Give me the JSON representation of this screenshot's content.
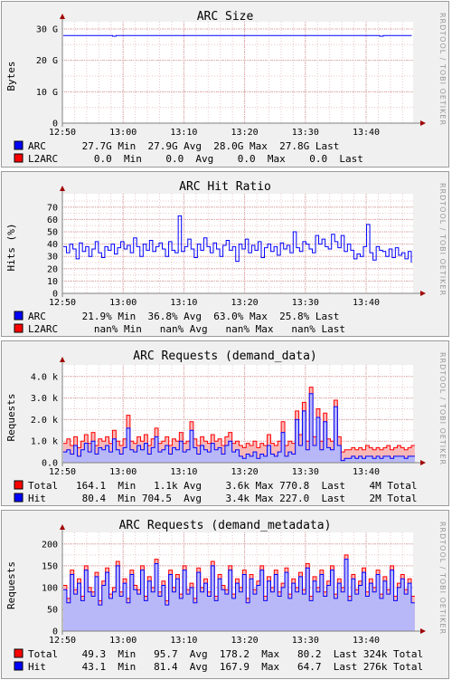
{
  "watermark": "RRDTOOL / TOBI OETIKER",
  "colors": {
    "blue": "#0000ff",
    "red": "#ff0000",
    "fill_blue": "#b8b8f8",
    "fill_red": "#f8b8b8",
    "grid": "#d9a0a0",
    "axis": "#808080"
  },
  "chart_data": [
    {
      "type": "line",
      "title": "ARC Size",
      "ylabel": "Bytes",
      "ylim": [
        0,
        30
      ],
      "yticks": [
        0,
        10,
        20,
        30
      ],
      "ytick_labels": [
        "0",
        "10 G",
        "20 G",
        "30 G"
      ],
      "xticks": [
        "12:50",
        "13:00",
        "13:10",
        "13:20",
        "13:30",
        "13:40"
      ],
      "series": [
        {
          "name": "ARC",
          "color": "#0000ff",
          "style": "line",
          "values": [
            27.9,
            27.9,
            27.9,
            27.9,
            27.9,
            27.9,
            27.9,
            27.9,
            27.9,
            27.9,
            27.9,
            27.9,
            27.9,
            27.9,
            27.7,
            27.9,
            27.9,
            27.9,
            27.9,
            27.9,
            27.9,
            27.9,
            27.9,
            27.9,
            27.9,
            27.9,
            27.9,
            27.9,
            27.9,
            27.9,
            27.9,
            27.9,
            27.9,
            27.9,
            27.9,
            27.9,
            27.9,
            27.9,
            27.9,
            27.9,
            27.9,
            27.9,
            27.9,
            27.9,
            27.9,
            27.9,
            27.9,
            27.9,
            27.9,
            27.9,
            27.9,
            27.9,
            27.9,
            27.9,
            27.9,
            27.9,
            27.9,
            27.9,
            27.9,
            27.9,
            27.9,
            27.9,
            27.9,
            27.9,
            27.9,
            27.9,
            27.9,
            27.9,
            27.9,
            27.9,
            27.9,
            27.9,
            27.9,
            27.9,
            27.9,
            27.9,
            27.9,
            27.9,
            27.9,
            27.9,
            27.9,
            27.9,
            27.9,
            27.9,
            27.9,
            27.9,
            27.9,
            27.9,
            27.9,
            27.9,
            27.7,
            27.9,
            27.9,
            27.9,
            27.9,
            27.9,
            27.9,
            27.9,
            27.9,
            27.8
          ]
        },
        {
          "name": "L2ARC",
          "color": "#ff0000",
          "style": "line",
          "values": []
        }
      ],
      "legend": [
        {
          "name": "ARC",
          "color": "#0000ff",
          "text": "ARC      27.7G Min  27.9G Avg  28.0G Max  27.8G Last"
        },
        {
          "name": "L2ARC",
          "color": "#ff0000",
          "text": "L2ARC      0.0  Min    0.0  Avg    0.0  Max    0.0  Last"
        }
      ]
    },
    {
      "type": "line",
      "title": "ARC Hit Ratio",
      "ylabel": "Hits (%)",
      "ylim": [
        0,
        75
      ],
      "yticks": [
        0,
        10,
        20,
        30,
        40,
        50,
        60,
        70
      ],
      "ytick_labels": [
        "0",
        "10",
        "20",
        "30",
        "40",
        "50",
        "60",
        "70"
      ],
      "xticks": [
        "12:50",
        "13:00",
        "13:10",
        "13:20",
        "13:30",
        "13:40"
      ],
      "series": [
        {
          "name": "ARC",
          "color": "#0000ff",
          "style": "line",
          "values": [
            38,
            33,
            40,
            36,
            28,
            41,
            34,
            38,
            30,
            36,
            42,
            33,
            29,
            38,
            35,
            40,
            32,
            37,
            42,
            36,
            39,
            33,
            45,
            38,
            30,
            40,
            35,
            43,
            34,
            38,
            41,
            36,
            30,
            42,
            35,
            33,
            63,
            34,
            38,
            44,
            36,
            29,
            40,
            35,
            45,
            38,
            33,
            41,
            36,
            30,
            39,
            43,
            35,
            38,
            26,
            40,
            36,
            44,
            33,
            39,
            35,
            42,
            29,
            37,
            40,
            34,
            38,
            31,
            41,
            36,
            39,
            33,
            50,
            37,
            34,
            42,
            40,
            36,
            33,
            47,
            40,
            44,
            38,
            36,
            48,
            42,
            37,
            47,
            34,
            40,
            35,
            28,
            32,
            30,
            38,
            56,
            33,
            27,
            38,
            35,
            34,
            30,
            36,
            29,
            37,
            31,
            33,
            28,
            34,
            25
          ]
        },
        {
          "name": "L2ARC",
          "color": "#ff0000",
          "style": "line",
          "values": []
        }
      ],
      "legend": [
        {
          "name": "ARC",
          "color": "#0000ff",
          "text": "ARC      21.9% Min  36.8% Avg  63.0% Max  25.8% Last"
        },
        {
          "name": "L2ARC",
          "color": "#ff0000",
          "text": "L2ARC      nan% Min   nan% Avg   nan% Max   nan% Last"
        }
      ]
    },
    {
      "type": "area",
      "title": "ARC Requests (demand_data)",
      "ylabel": "Requests",
      "ylim": [
        0,
        4.2
      ],
      "yticks": [
        0,
        1,
        2,
        3,
        4
      ],
      "ytick_labels": [
        "0.0",
        "1.0 k",
        "2.0 k",
        "3.0 k",
        "4.0 k"
      ],
      "xticks": [
        "12:50",
        "13:00",
        "13:10",
        "13:20",
        "13:30",
        "13:40"
      ],
      "series": [
        {
          "name": "Total",
          "color": "#ff0000",
          "style": "area",
          "values": [
            0.9,
            1.1,
            0.8,
            1.2,
            0.7,
            1.0,
            1.3,
            0.9,
            1.4,
            0.8,
            1.1,
            1.0,
            1.2,
            0.9,
            1.5,
            1.0,
            0.8,
            1.1,
            2.2,
            1.0,
            0.9,
            1.2,
            1.0,
            1.3,
            0.8,
            1.1,
            1.6,
            0.9,
            1.0,
            1.2,
            0.8,
            1.1,
            1.0,
            1.4,
            0.9,
            1.0,
            1.9,
            1.1,
            0.8,
            1.2,
            1.0,
            0.9,
            1.3,
            1.0,
            1.1,
            0.8,
            1.2,
            1.4,
            0.9,
            1.0,
            0.8,
            0.7,
            0.9,
            0.8,
            1.0,
            0.7,
            0.9,
            0.8,
            1.3,
            0.9,
            0.8,
            1.0,
            1.9,
            0.8,
            1.0,
            0.9,
            2.4,
            1.3,
            2.8,
            1.0,
            3.5,
            1.2,
            2.5,
            1.0,
            2.3,
            1.1,
            1.0,
            2.9,
            1.2,
            0.5,
            0.6,
            0.6,
            0.7,
            0.6,
            0.7,
            0.6,
            0.8,
            0.7,
            0.6,
            0.7,
            0.6,
            0.7,
            0.8,
            0.6,
            0.7,
            0.8,
            0.7,
            0.6,
            0.7,
            0.8
          ]
        },
        {
          "name": "Hit",
          "color": "#0000ff",
          "style": "area",
          "values": [
            0.5,
            0.6,
            0.4,
            0.8,
            0.3,
            0.6,
            0.9,
            0.5,
            1.0,
            0.4,
            0.7,
            0.6,
            0.8,
            0.5,
            1.1,
            0.6,
            0.4,
            0.7,
            1.6,
            0.6,
            0.5,
            0.8,
            0.6,
            0.9,
            0.4,
            0.7,
            1.2,
            0.5,
            0.6,
            0.8,
            0.4,
            0.7,
            0.6,
            1.0,
            0.5,
            0.6,
            1.5,
            0.7,
            0.4,
            0.8,
            0.6,
            0.5,
            0.9,
            0.6,
            0.7,
            0.4,
            0.8,
            1.0,
            0.5,
            0.6,
            0.3,
            0.2,
            0.4,
            0.3,
            0.5,
            0.2,
            0.4,
            0.3,
            0.8,
            0.4,
            0.3,
            0.5,
            1.4,
            0.3,
            0.5,
            0.4,
            2.0,
            0.8,
            2.4,
            0.6,
            3.2,
            0.8,
            2.1,
            0.6,
            1.9,
            0.7,
            0.6,
            2.6,
            0.8,
            0.1,
            0.2,
            0.2,
            0.3,
            0.2,
            0.3,
            0.2,
            0.3,
            0.3,
            0.2,
            0.3,
            0.2,
            0.3,
            0.3,
            0.2,
            0.3,
            0.3,
            0.3,
            0.2,
            0.3,
            0.3
          ]
        }
      ],
      "legend": [
        {
          "name": "Total",
          "color": "#ff0000",
          "text": "Total   164.1  Min   1.1k Avg    3.6k Max 770.8  Last    4M Total"
        },
        {
          "name": "Hit",
          "color": "#0000ff",
          "text": "Hit      80.4  Min 704.5  Avg    3.4k Max 227.0  Last    2M Total"
        }
      ]
    },
    {
      "type": "area",
      "title": "ARC Requests (demand_metadata)",
      "ylabel": "Requests",
      "ylim": [
        0,
        210
      ],
      "yticks": [
        0,
        50,
        100,
        150,
        200
      ],
      "ytick_labels": [
        "0",
        "50",
        "100",
        "150",
        "200"
      ],
      "xticks": [
        "12:50",
        "13:00",
        "13:10",
        "13:20",
        "13:30",
        "13:40"
      ],
      "series": [
        {
          "name": "Total",
          "color": "#ff0000",
          "style": "area",
          "values": [
            105,
            75,
            140,
            95,
            120,
            80,
            150,
            100,
            90,
            135,
            70,
            115,
            145,
            85,
            100,
            160,
            90,
            120,
            75,
            140,
            105,
            95,
            150,
            80,
            125,
            100,
            165,
            90,
            115,
            70,
            140,
            100,
            130,
            85,
            150,
            95,
            110,
            75,
            145,
            100,
            120,
            90,
            160,
            80,
            130,
            105,
            95,
            150,
            85,
            120,
            100,
            140,
            75,
            130,
            95,
            115,
            150,
            80,
            125,
            100,
            140,
            90,
            110,
            145,
            85,
            120,
            100,
            135,
            95,
            155,
            80,
            125,
            100,
            140,
            90,
            115,
            150,
            85,
            120,
            100,
            175,
            80,
            130,
            95,
            115,
            145,
            90,
            120,
            100,
            140,
            85,
            125,
            95,
            150,
            80,
            110,
            130,
            95,
            120,
            80
          ]
        },
        {
          "name": "Hit",
          "color": "#0000ff",
          "style": "area",
          "values": [
            95,
            65,
            130,
            85,
            110,
            70,
            140,
            90,
            80,
            125,
            60,
            105,
            135,
            75,
            90,
            150,
            80,
            110,
            65,
            130,
            95,
            85,
            140,
            70,
            115,
            90,
            155,
            80,
            105,
            60,
            130,
            90,
            120,
            75,
            140,
            85,
            100,
            65,
            135,
            90,
            110,
            80,
            150,
            70,
            120,
            95,
            85,
            140,
            75,
            110,
            90,
            130,
            65,
            120,
            85,
            105,
            140,
            70,
            115,
            90,
            130,
            80,
            100,
            135,
            75,
            110,
            90,
            125,
            85,
            145,
            70,
            115,
            90,
            130,
            80,
            105,
            140,
            75,
            110,
            90,
            165,
            70,
            120,
            85,
            105,
            135,
            80,
            110,
            90,
            130,
            75,
            115,
            85,
            140,
            70,
            100,
            120,
            85,
            110,
            65
          ]
        }
      ],
      "legend": [
        {
          "name": "Total",
          "color": "#ff0000",
          "text": "Total    49.3  Min   95.7  Avg  178.2  Max   80.2  Last 324k Total"
        },
        {
          "name": "Hit",
          "color": "#0000ff",
          "text": "Hit      43.1  Min   81.4  Avg  167.9  Max   64.7  Last 276k Total"
        }
      ]
    }
  ]
}
